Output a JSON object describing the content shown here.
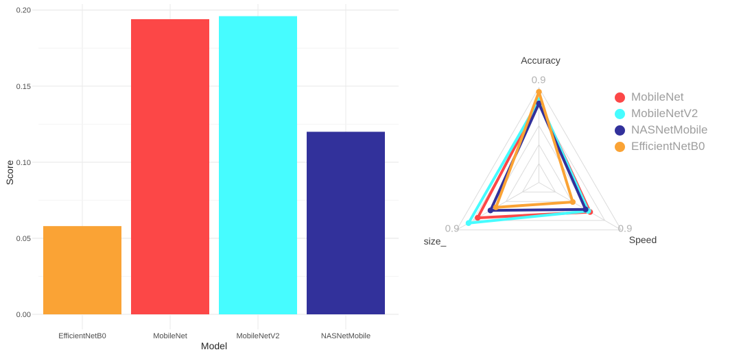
{
  "page": {
    "background": "#ffffff"
  },
  "model_colors": {
    "MobileNet": "#FC4747",
    "MobileNetV2": "#46FCFF",
    "NASNetMobile": "#32319B",
    "EfficientNetB0": "#FAA335"
  },
  "chart_data": [
    {
      "id": "score-bar-chart",
      "type": "bar",
      "title": "",
      "xlabel": "Model",
      "ylabel": "Score",
      "categories": [
        "EfficientNetB0",
        "MobileNet",
        "MobileNetV2",
        "NASNetMobile"
      ],
      "values": [
        0.058,
        0.194,
        0.196,
        0.12
      ],
      "bar_colors": [
        "#FAA335",
        "#FC4747",
        "#46FCFF",
        "#32319B"
      ],
      "ylim": [
        0,
        0.2
      ],
      "y_ticks": [
        0.0,
        0.05,
        0.1,
        0.15,
        0.2
      ],
      "y_tick_labels": [
        "0.00",
        "0.05",
        "0.10",
        "0.15",
        "0.20"
      ],
      "y_minor_ticks": [
        0.025,
        0.075,
        0.125,
        0.175
      ],
      "grid": "major and minor horizontal, vertical at category centers",
      "legend": "none",
      "colors": {
        "major_grid": "#EBEBEB",
        "minor_grid": "#F4F4F4",
        "x_tick": "#ECECEC",
        "tick_label": "#4D4D4D",
        "axis_title": "#262626"
      }
    },
    {
      "id": "model-radar-chart",
      "type": "radar",
      "axes": [
        "Accuracy",
        "Speed",
        "size_"
      ],
      "axis_max": 0.9,
      "axis_max_label": "0.9",
      "rings": 5,
      "grid": true,
      "series": [
        {
          "name": "MobileNet",
          "color": "#FC4747",
          "values": [
            0.77,
            0.56,
            0.67
          ]
        },
        {
          "name": "MobileNetV2",
          "color": "#46FCFF",
          "values": [
            0.78,
            0.54,
            0.77
          ]
        },
        {
          "name": "NASNetMobile",
          "color": "#32319B",
          "values": [
            0.75,
            0.51,
            0.53
          ]
        },
        {
          "name": "EfficientNetB0",
          "color": "#FAA335",
          "values": [
            0.86,
            0.37,
            0.47
          ]
        }
      ],
      "legend": {
        "position": "right",
        "items": [
          "MobileNet",
          "MobileNetV2",
          "NASNetMobile",
          "EfficientNetB0"
        ]
      },
      "colors": {
        "grid": "#DBDBDB",
        "axis_name": "#3C3C3C",
        "max_label": "#B3B3B3",
        "legend_text": "#9E9E9E"
      }
    }
  ]
}
